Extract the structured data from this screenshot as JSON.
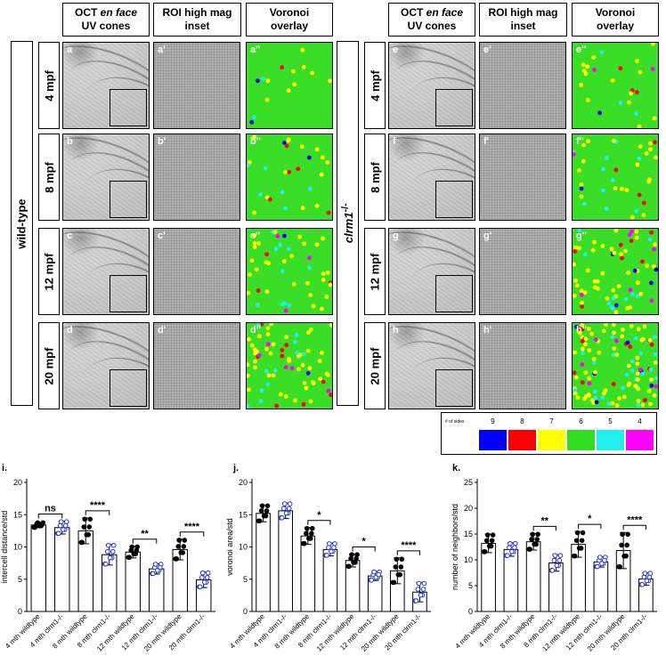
{
  "figure": {
    "columns": [
      {
        "line1": "OCT ",
        "italic": "en face",
        "line2": "UV cones"
      },
      {
        "line1": "ROI high mag",
        "italic": "",
        "line2": "inset"
      },
      {
        "line1": "Voronoi",
        "italic": "",
        "line2": "overlay"
      }
    ],
    "wildtype_label": "wild-type",
    "mutant_label": "clrm1",
    "mutant_sup": "-/-",
    "rows": [
      "4 mpf",
      "8 mpf",
      "12 mpf",
      "20 mpf"
    ],
    "left_panels": [
      [
        "a",
        "a'",
        "a''"
      ],
      [
        "b",
        "b'",
        "b''"
      ],
      [
        "c",
        "c'",
        "c''"
      ],
      [
        "d",
        "d'",
        "d''"
      ]
    ],
    "right_panels": [
      [
        "e",
        "e'",
        "e''"
      ],
      [
        "f",
        "f'",
        "f''"
      ],
      [
        "g",
        "g'",
        "g''"
      ],
      [
        "h",
        "h'",
        "h''"
      ]
    ],
    "legend": {
      "title": "# of sides",
      "items": [
        {
          "label": "9",
          "color": "#0000ff"
        },
        {
          "label": "8",
          "color": "#ff0000"
        },
        {
          "label": "7",
          "color": "#ffff00"
        },
        {
          "label": "6",
          "color": "#33dd22"
        },
        {
          "label": "5",
          "color": "#22eeee"
        },
        {
          "label": "4",
          "color": "#ff00ff"
        }
      ]
    }
  },
  "chart_data": [
    {
      "type": "bar",
      "panel": "i.",
      "ylabel": "intercell distance/std",
      "ylim": [
        0,
        20
      ],
      "yticks": [
        "0",
        "5",
        "10",
        "15",
        "20"
      ],
      "categories": [
        "4 mth wildtype",
        "4 mth clrm1-/-",
        "8 mth wildtype",
        "8 mth clrm1-/-",
        "12 mth wildtype",
        "12 mth clrm1-/-",
        "20 mth wildtype",
        "20 mth clrm1-/-"
      ],
      "values": [
        13.4,
        13.0,
        12.5,
        8.8,
        9.2,
        6.6,
        9.6,
        4.9
      ],
      "errors": [
        0.4,
        1.0,
        2.0,
        1.6,
        0.9,
        0.8,
        1.6,
        1.2
      ],
      "significance": [
        {
          "pair": [
            0,
            1
          ],
          "label": "ns"
        },
        {
          "pair": [
            2,
            3
          ],
          "label": "****"
        },
        {
          "pair": [
            4,
            5
          ],
          "label": "**"
        },
        {
          "pair": [
            6,
            7
          ],
          "label": "****"
        }
      ]
    },
    {
      "type": "bar",
      "panel": "j.",
      "ylabel": "voronoi area/std",
      "ylim": [
        0,
        20
      ],
      "yticks": [
        "0",
        "5",
        "10",
        "15",
        "20"
      ],
      "categories": [
        "4 mth wildtype",
        "4 mth clrm1-/-",
        "8 mth wildtype",
        "8 mth clrm1-/-",
        "12 mth wildtype",
        "12 mth clrm1-/-",
        "20 mth wildtype",
        "20 mth clrm1-/-"
      ],
      "values": [
        15.2,
        15.6,
        11.7,
        9.6,
        7.9,
        5.5,
        6.3,
        3.0
      ],
      "errors": [
        1.3,
        1.2,
        1.3,
        1.0,
        1.0,
        0.7,
        2.0,
        1.5
      ],
      "significance": [
        {
          "pair": [
            2,
            3
          ],
          "label": "*"
        },
        {
          "pair": [
            4,
            5
          ],
          "label": "*"
        },
        {
          "pair": [
            6,
            7
          ],
          "label": "****"
        }
      ]
    },
    {
      "type": "bar",
      "panel": "k.",
      "ylabel": "number of neighbors/std",
      "ylim": [
        0,
        25
      ],
      "yticks": [
        "0",
        "5",
        "10",
        "15",
        "20",
        "25"
      ],
      "categories": [
        "4 mth wildtype",
        "4 mth clrm1-/-",
        "8 mth wildtype",
        "8 mth clrm1-/-",
        "12 mth wildtype",
        "12 mth clrm1-/-",
        "20 mth wildtype",
        "20 mth clrm1-/-"
      ],
      "values": [
        13.2,
        12.0,
        13.5,
        9.4,
        13.0,
        9.6,
        11.8,
        6.3
      ],
      "errors": [
        1.8,
        1.3,
        1.6,
        1.6,
        2.5,
        1.0,
        3.5,
        1.2
      ],
      "significance": [
        {
          "pair": [
            2,
            3
          ],
          "label": "**"
        },
        {
          "pair": [
            4,
            5
          ],
          "label": "*"
        },
        {
          "pair": [
            6,
            7
          ],
          "label": "****"
        }
      ]
    }
  ]
}
